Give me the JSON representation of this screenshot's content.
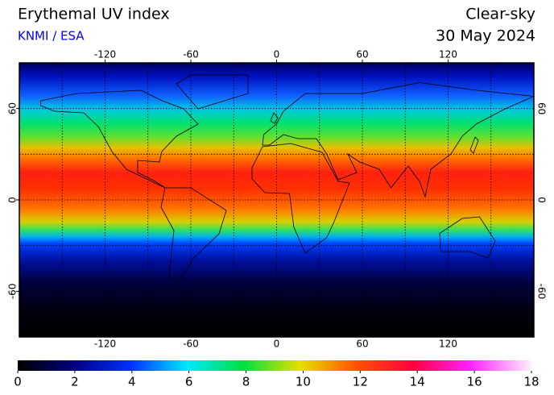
{
  "header": {
    "title": "Erythemal UV index",
    "source": "KNMI / ESA",
    "condition": "Clear-sky",
    "date": "30 May 2024"
  },
  "map": {
    "xlim": [
      -180,
      180
    ],
    "ylim": [
      -90,
      90
    ],
    "xticks": [
      -120,
      -60,
      0,
      60,
      120
    ],
    "yticks": [
      60,
      0,
      -60
    ],
    "grid_step": 30
  },
  "colorbar": {
    "ticks": [
      0,
      2,
      4,
      6,
      8,
      10,
      12,
      14,
      16,
      18
    ]
  }
}
